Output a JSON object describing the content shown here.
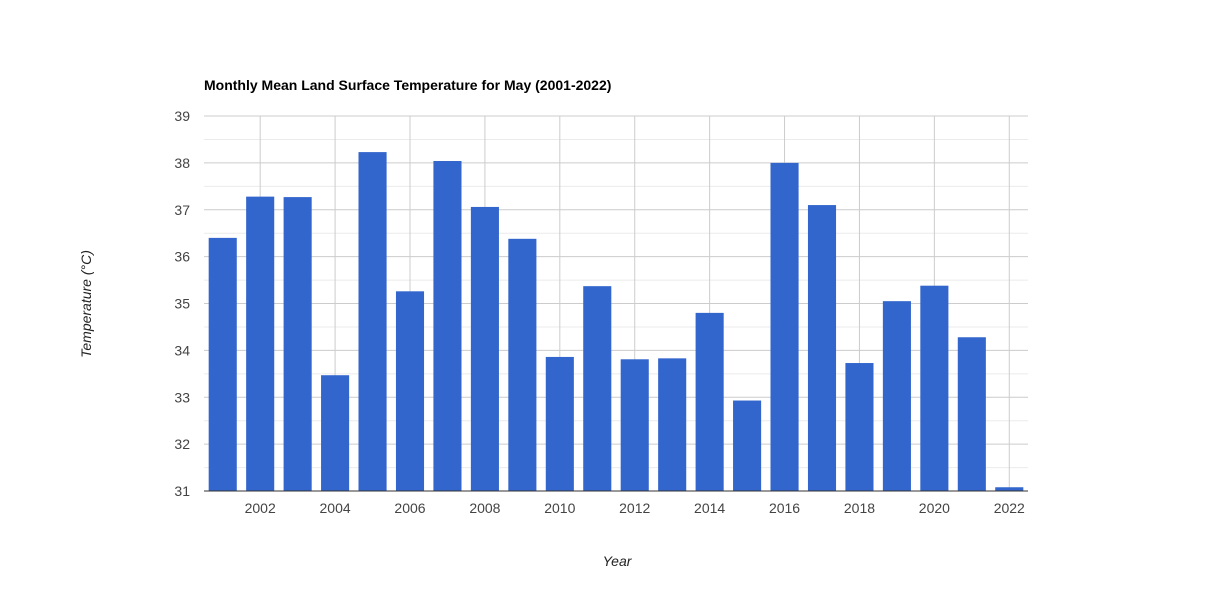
{
  "chart_data": {
    "type": "bar",
    "title": "Monthly Mean Land Surface Temperature for May (2001-2022)",
    "xlabel": "Year",
    "ylabel": "Temperature (°C)",
    "x": [
      2001,
      2002,
      2003,
      2004,
      2005,
      2006,
      2007,
      2008,
      2009,
      2010,
      2011,
      2012,
      2013,
      2014,
      2015,
      2016,
      2017,
      2018,
      2019,
      2020,
      2021,
      2022
    ],
    "values": [
      36.4,
      37.28,
      37.27,
      33.47,
      38.23,
      35.26,
      38.04,
      37.06,
      36.38,
      33.86,
      35.37,
      33.81,
      33.83,
      34.8,
      32.93,
      38.0,
      37.1,
      33.73,
      35.05,
      35.38,
      34.28,
      31.08
    ],
    "ylim": [
      31,
      39
    ],
    "yticks": [
      "31",
      "32",
      "33",
      "34",
      "35",
      "36",
      "37",
      "38",
      "39"
    ],
    "xticks": [
      "2002",
      "2004",
      "2006",
      "2008",
      "2010",
      "2012",
      "2014",
      "2016",
      "2018",
      "2020",
      "2022"
    ],
    "grid": true,
    "bar_color": "#3366cc"
  }
}
